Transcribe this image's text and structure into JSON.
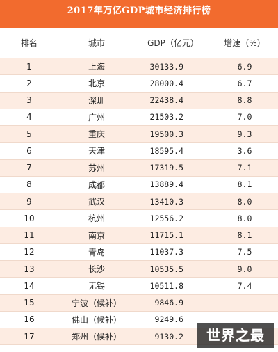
{
  "chart_data": {
    "type": "table",
    "title": "2017年万亿GDP城市经济排行榜",
    "columns": [
      "排名",
      "城市",
      "GDP（亿元）",
      "增速（%）"
    ],
    "rows": [
      {
        "rank": "1",
        "city": "上海",
        "gdp": "30133.9",
        "growth": "6.9"
      },
      {
        "rank": "2",
        "city": "北京",
        "gdp": "28000.4",
        "growth": "6.7"
      },
      {
        "rank": "3",
        "city": "深圳",
        "gdp": "22438.4",
        "growth": "8.8"
      },
      {
        "rank": "4",
        "city": "广州",
        "gdp": "21503.2",
        "growth": "7.0"
      },
      {
        "rank": "5",
        "city": "重庆",
        "gdp": "19500.3",
        "growth": "9.3"
      },
      {
        "rank": "6",
        "city": "天津",
        "gdp": "18595.4",
        "growth": "3.6"
      },
      {
        "rank": "7",
        "city": "苏州",
        "gdp": "17319.5",
        "growth": "7.1"
      },
      {
        "rank": "8",
        "city": "成都",
        "gdp": "13889.4",
        "growth": "8.1"
      },
      {
        "rank": "9",
        "city": "武汉",
        "gdp": "13410.3",
        "growth": "8.0"
      },
      {
        "rank": "10",
        "city": "杭州",
        "gdp": "12556.2",
        "growth": "8.0"
      },
      {
        "rank": "11",
        "city": "南京",
        "gdp": "11715.1",
        "growth": "8.1"
      },
      {
        "rank": "12",
        "city": "青岛",
        "gdp": "11037.3",
        "growth": "7.5"
      },
      {
        "rank": "13",
        "city": "长沙",
        "gdp": "10535.5",
        "growth": "9.0"
      },
      {
        "rank": "14",
        "city": "无锡",
        "gdp": "10511.8",
        "growth": "7.4"
      },
      {
        "rank": "15",
        "city": "宁波（候补）",
        "gdp": "9846.9",
        "growth": ""
      },
      {
        "rank": "16",
        "city": "佛山（候补）",
        "gdp": "9249.6",
        "growth": ""
      },
      {
        "rank": "17",
        "city": "郑州（候补）",
        "gdp": "9130.2",
        "growth": ""
      }
    ]
  },
  "watermark": "世界之最",
  "colors": {
    "header_bg": "#f26b2e",
    "alt_row": "#fdece2"
  }
}
